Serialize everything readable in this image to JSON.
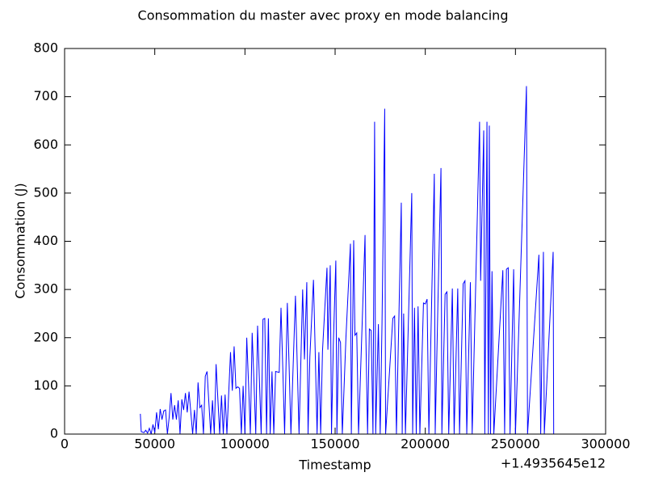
{
  "chart_data": {
    "type": "line",
    "title": "Consommation du master avec proxy en mode balancing",
    "x_label": "Timestamp",
    "y_label": "Consommation (J)",
    "x_offset": "+1.4935645e12",
    "color": "#0000ff",
    "xlim": [
      0,
      300000
    ],
    "xticks": [
      0,
      50000,
      100000,
      150000,
      200000,
      250000,
      300000
    ],
    "ylim": [
      0,
      800
    ],
    "yticks": [
      0,
      100,
      200,
      300,
      400,
      500,
      600,
      700,
      800
    ],
    "x": [
      42000,
      42500,
      44000,
      45000,
      46000,
      47000,
      48000,
      49000,
      50000,
      51000,
      52000,
      53000,
      54000,
      55000,
      56000,
      57000,
      58000,
      59000,
      60000,
      61000,
      62000,
      63000,
      64000,
      65000,
      66000,
      67000,
      68000,
      69000,
      70000,
      71000,
      72000,
      73000,
      74000,
      75000,
      76000,
      77000,
      78000,
      79000,
      80000,
      81000,
      82000,
      83000,
      84000,
      85000,
      86000,
      87000,
      88000,
      89000,
      90000,
      91000,
      92000,
      93000,
      94000,
      95000,
      96000,
      97000,
      98000,
      99000,
      100000,
      101000,
      102000,
      103000,
      104000,
      105000,
      106000,
      107000,
      108000,
      109000,
      110000,
      111000,
      112000,
      113000,
      114000,
      115000,
      116000,
      117000,
      119000,
      120000,
      121000,
      122000,
      123500,
      124500,
      125500,
      128000,
      129000,
      130000,
      131000,
      132000,
      133000,
      134300,
      135000,
      136000,
      138000,
      139000,
      140000,
      141000,
      142000,
      143000,
      145500,
      146000,
      147300,
      148000,
      149000,
      150400,
      151000,
      152000,
      153000,
      154000,
      156000,
      158500,
      159000,
      160300,
      161000,
      162000,
      163000,
      166600,
      167000,
      168000,
      169000,
      170000,
      171000,
      171900,
      172500,
      174000,
      175000,
      176000,
      177500,
      178000,
      182000,
      183000,
      184000,
      186700,
      187200,
      188000,
      189000,
      192500,
      193000,
      194000,
      195000,
      196000,
      197000,
      199000,
      200000,
      201000,
      202000,
      205000,
      205500,
      207000,
      208700,
      209200,
      211000,
      212000,
      213000,
      215000,
      216000,
      218000,
      219000,
      221000,
      222000,
      223000,
      225000,
      226000,
      230100,
      230700,
      232400,
      233000,
      234200,
      235000,
      235500,
      236200,
      237000,
      238000,
      243000,
      244000,
      245000,
      246000,
      247000,
      249000,
      250000,
      256100,
      256700,
      263000,
      264000,
      265500,
      266000,
      270900,
      271200,
      277000
    ],
    "values": [
      42,
      5,
      3,
      8,
      2,
      12,
      0,
      20,
      3,
      45,
      10,
      52,
      30,
      48,
      50,
      0,
      35,
      85,
      30,
      60,
      30,
      70,
      0,
      72,
      50,
      85,
      45,
      88,
      45,
      0,
      50,
      0,
      107,
      55,
      60,
      0,
      120,
      130,
      65,
      0,
      70,
      0,
      145,
      72,
      0,
      80,
      0,
      82,
      0,
      85,
      170,
      90,
      182,
      95,
      98,
      95,
      0,
      100,
      0,
      200,
      105,
      0,
      210,
      110,
      0,
      225,
      115,
      0,
      238,
      240,
      0,
      240,
      0,
      130,
      0,
      130,
      128,
      262,
      135,
      0,
      272,
      140,
      0,
      287,
      145,
      0,
      150,
      300,
      155,
      315,
      0,
      160,
      320,
      165,
      0,
      170,
      0,
      172,
      345,
      175,
      350,
      0,
      185,
      360,
      0,
      200,
      190,
      0,
      200,
      395,
      0,
      402,
      205,
      210,
      0,
      413,
      215,
      0,
      218,
      215,
      0,
      648,
      0,
      228,
      0,
      228,
      675,
      0,
      240,
      245,
      0,
      480,
      0,
      250,
      0,
      500,
      0,
      262,
      0,
      265,
      0,
      272,
      270,
      280,
      0,
      540,
      0,
      270,
      552,
      0,
      290,
      295,
      0,
      302,
      0,
      302,
      0,
      312,
      318,
      0,
      315,
      0,
      648,
      318,
      630,
      0,
      648,
      0,
      640,
      0,
      338,
      0,
      340,
      0,
      342,
      345,
      0,
      342,
      0,
      722,
      0,
      372,
      0,
      378,
      0,
      378,
      0,
      0
    ]
  }
}
